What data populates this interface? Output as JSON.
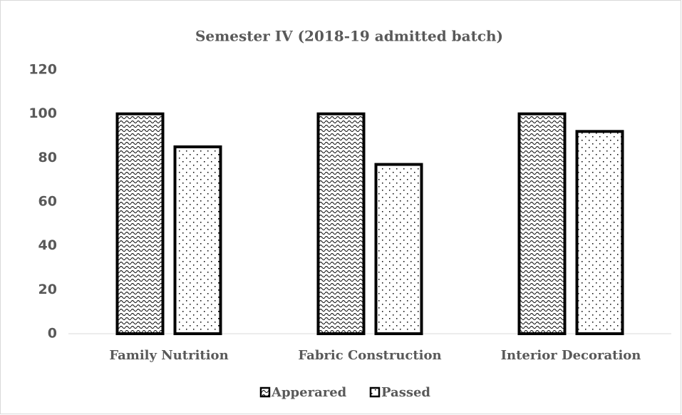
{
  "chart_data": {
    "type": "bar",
    "title": "Semester IV (2018-19 admitted batch)",
    "categories": [
      "Family Nutrition",
      "Fabric Construction",
      "Interior Decoration"
    ],
    "series": [
      {
        "name": "Apperared",
        "color": "#000000",
        "values": [
          100,
          100,
          100
        ]
      },
      {
        "name": "Passed",
        "color": "#000000",
        "values": [
          85,
          77,
          92
        ]
      }
    ],
    "ylim": [
      0,
      120
    ],
    "yticks": [
      0,
      20,
      40,
      60,
      80,
      100,
      120
    ],
    "grid": false,
    "legend": "bottom"
  }
}
